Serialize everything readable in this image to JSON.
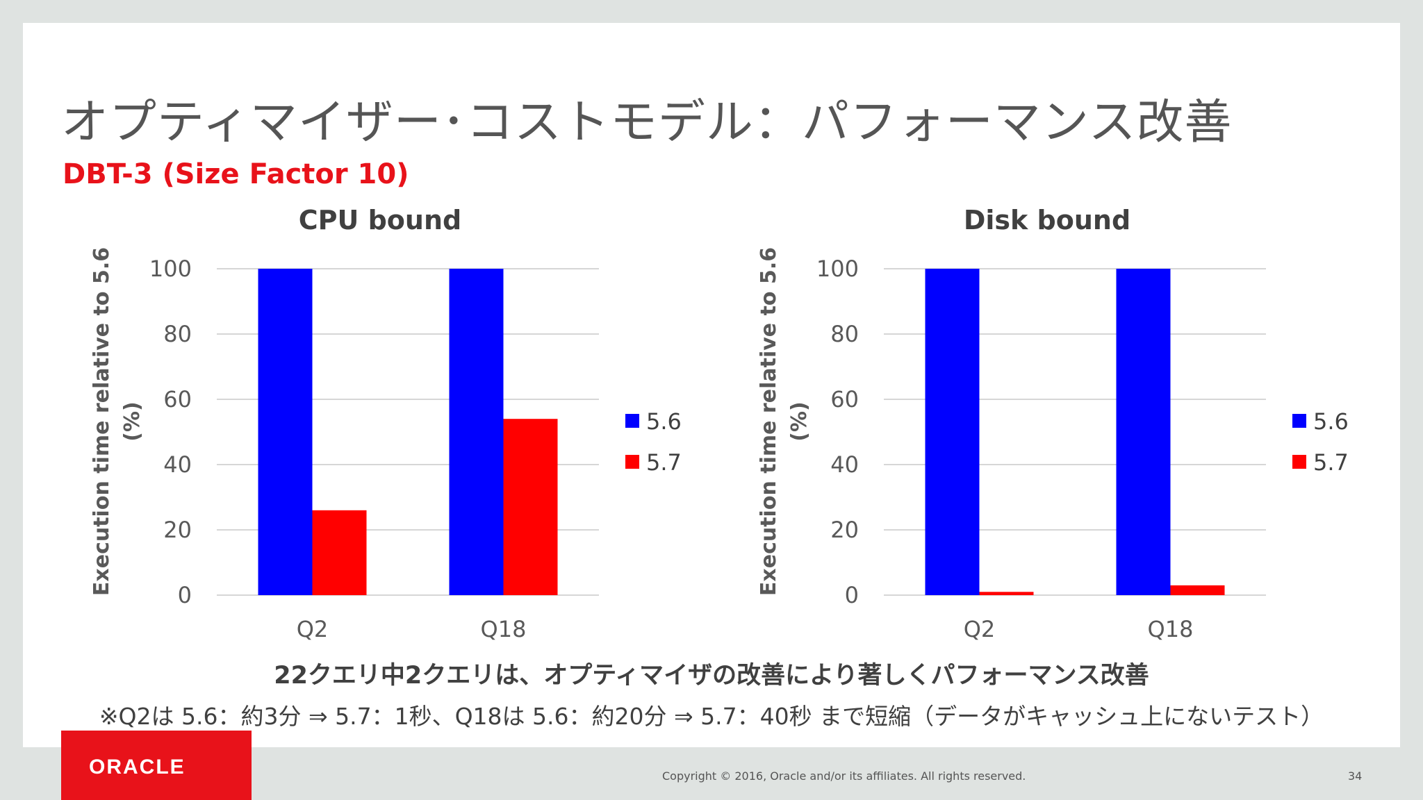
{
  "slide": {
    "title": "オプティマイザー･コストモデル：パフォーマンス改善",
    "subtitle": "DBT-3 (Size Factor 10)",
    "summary": "22クエリ中2クエリは、オプティマイザの改善により著しくパフォーマンス改善",
    "note": "※Q2は 5.6：約3分 ⇒ 5.7：1秒、Q18は 5.6：約20分 ⇒ 5.7：40秒 まで短縮（データがキャッシュ上にないテスト）",
    "logo_text": "ORACLE",
    "copyright": "Copyright © 2016, Oracle and/or its affiliates. All rights reserved.",
    "page_number": "34"
  },
  "colors": {
    "series_5_6": "#0000ff",
    "series_5_7": "#ff0000",
    "title_red": "#e8121a",
    "grid": "#c8c8c8"
  },
  "chart_data": [
    {
      "type": "bar",
      "title": "CPU bound",
      "ylabel_line1": "Execution time relative to 5.6",
      "ylabel_line2": "(%)",
      "categories": [
        "Q2",
        "Q18"
      ],
      "series": [
        {
          "name": "5.6",
          "values": [
            100,
            100
          ]
        },
        {
          "name": "5.7",
          "values": [
            26,
            54
          ]
        }
      ],
      "ylim": [
        0,
        100
      ],
      "yticks": [
        0,
        20,
        40,
        60,
        80,
        100
      ],
      "grid": true,
      "legend": "right"
    },
    {
      "type": "bar",
      "title": "Disk bound",
      "ylabel_line1": "Execution time relative to 5.6",
      "ylabel_line2": "(%)",
      "categories": [
        "Q2",
        "Q18"
      ],
      "series": [
        {
          "name": "5.6",
          "values": [
            100,
            100
          ]
        },
        {
          "name": "5.7",
          "values": [
            1,
            3
          ]
        }
      ],
      "ylim": [
        0,
        100
      ],
      "yticks": [
        0,
        20,
        40,
        60,
        80,
        100
      ],
      "grid": true,
      "legend": "right"
    }
  ]
}
